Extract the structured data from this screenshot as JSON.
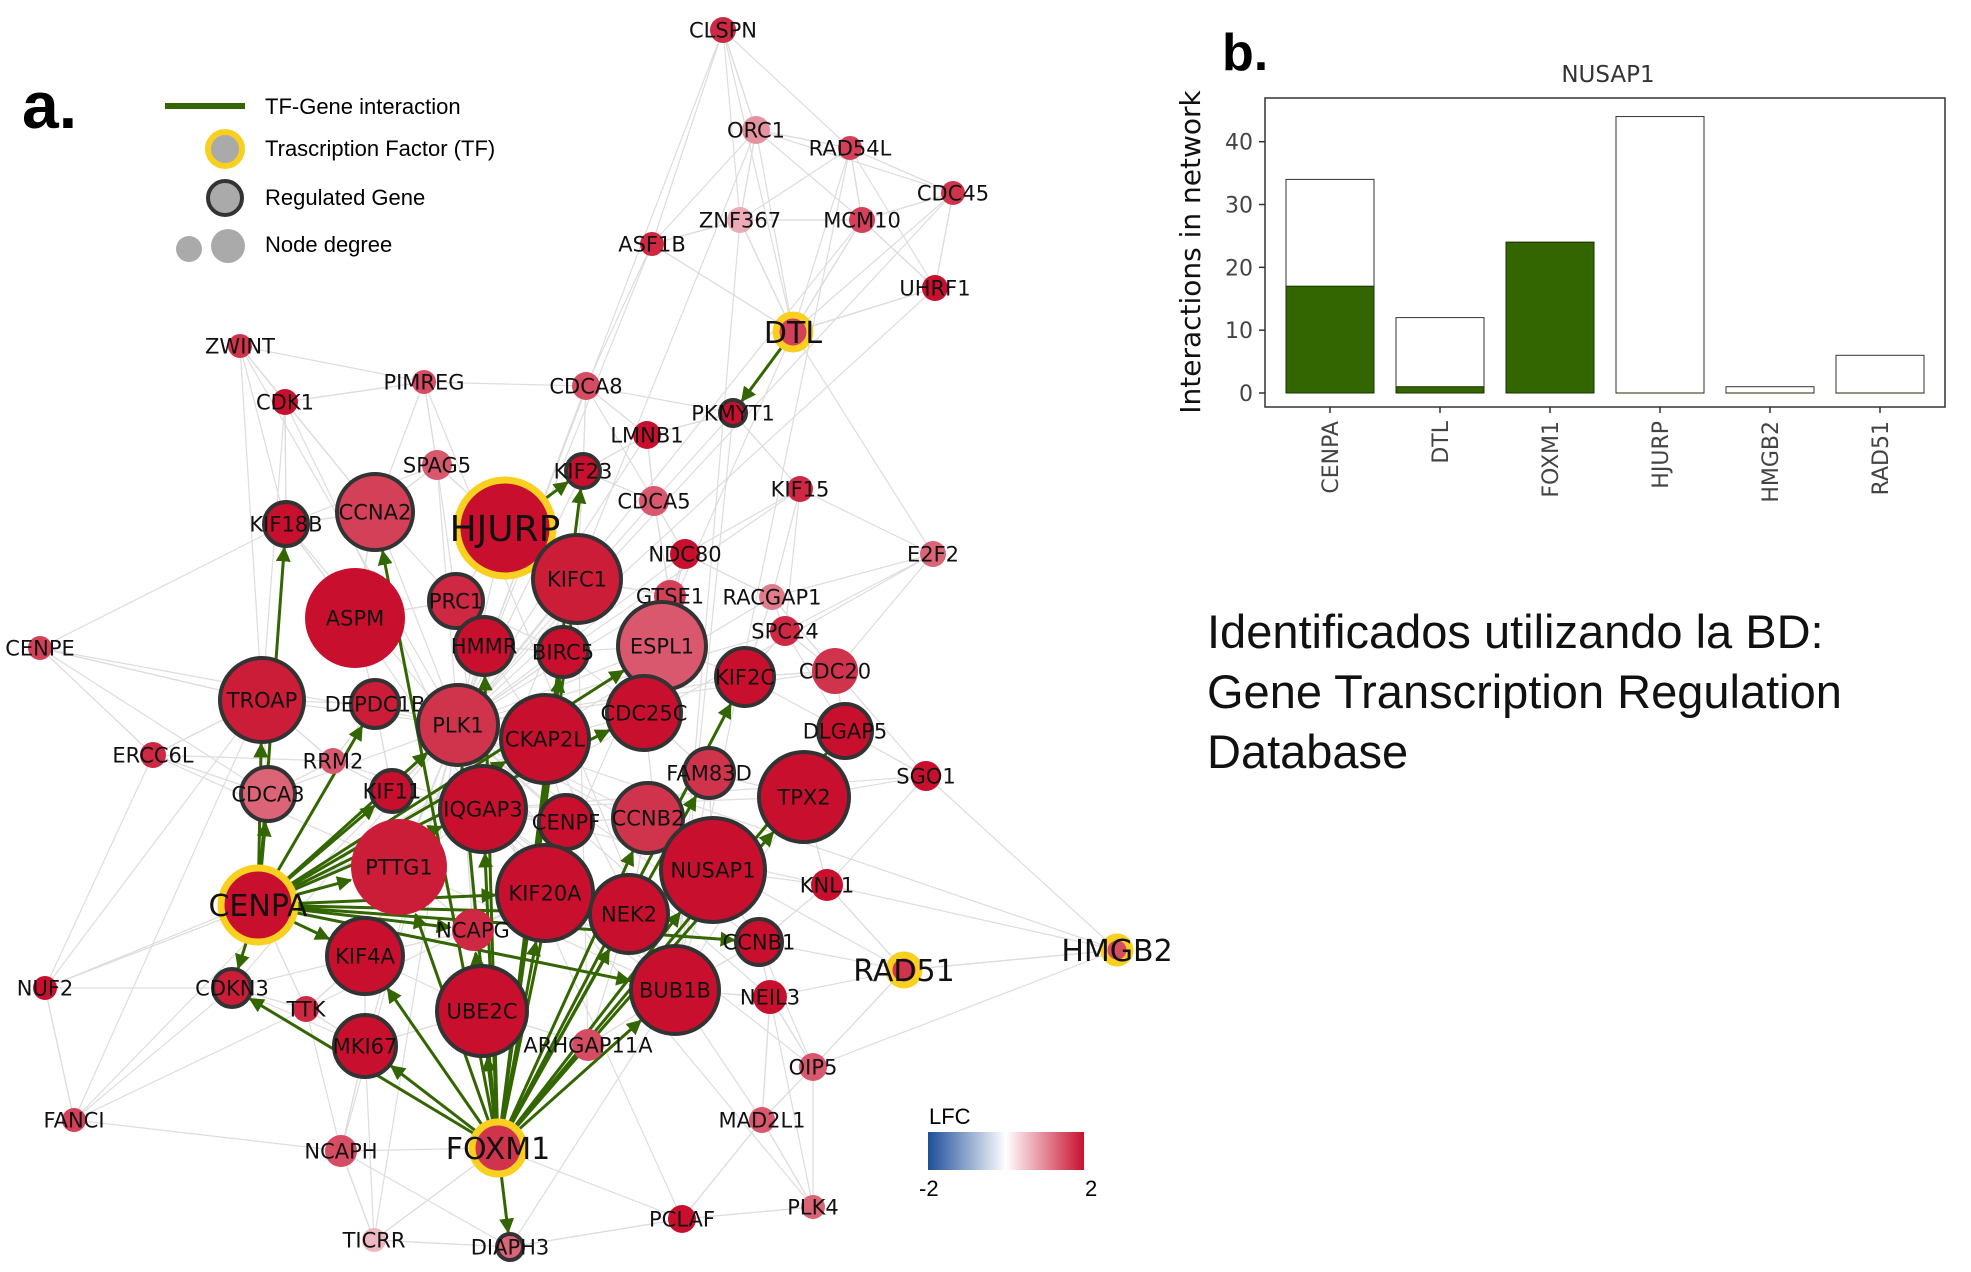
{
  "panel_a": {
    "letter": "a.",
    "legend": {
      "tf_gene_interaction": "TF-Gene interaction",
      "transcription_factor": "Trascription Factor (TF)",
      "regulated_gene": "Regulated Gene",
      "node_degree": "Node degree"
    },
    "colorbar": {
      "title": "LFC",
      "min_label": "-2",
      "max_label": "2",
      "low_color": "#1e4e9a",
      "mid_color": "#ffffff",
      "high_color": "#c8102e"
    },
    "colors": {
      "tf_ring": "#f9d020",
      "gene_ring": "#333333",
      "edge": "#dddddd",
      "regulation_edge": "#336600"
    },
    "nodes": [
      {
        "label": "CLSPN",
        "lfc": 1.8,
        "kind": "plain"
      },
      {
        "label": "ORC1",
        "lfc": 0.9,
        "kind": "plain"
      },
      {
        "label": "RAD54L",
        "lfc": 1.6,
        "kind": "plain"
      },
      {
        "label": "CDC45",
        "lfc": 1.7,
        "kind": "plain"
      },
      {
        "label": "ZNF367",
        "lfc": 0.7,
        "kind": "plain"
      },
      {
        "label": "MCM10",
        "lfc": 1.6,
        "kind": "plain"
      },
      {
        "label": "ASF1B",
        "lfc": 1.8,
        "kind": "plain"
      },
      {
        "label": "UHRF1",
        "lfc": 2,
        "kind": "plain"
      },
      {
        "label": "DTL",
        "lfc": 1.6,
        "kind": "tf"
      },
      {
        "label": "ZWINT",
        "lfc": 1.7,
        "kind": "plain"
      },
      {
        "label": "PIMREG",
        "lfc": 1.5,
        "kind": "plain"
      },
      {
        "label": "CDCA8",
        "lfc": 1.5,
        "kind": "plain"
      },
      {
        "label": "PKMYT1",
        "lfc": 2,
        "kind": "gene"
      },
      {
        "label": "CDK1",
        "lfc": 2,
        "kind": "plain"
      },
      {
        "label": "LMNB1",
        "lfc": 2,
        "kind": "plain"
      },
      {
        "label": "SPAG5",
        "lfc": 1.4,
        "kind": "plain"
      },
      {
        "label": "KIF23",
        "lfc": 2,
        "kind": "gene"
      },
      {
        "label": "KIF15",
        "lfc": 1.8,
        "kind": "plain"
      },
      {
        "label": "CCNA2",
        "lfc": 1.6,
        "kind": "gene"
      },
      {
        "label": "HJURP",
        "lfc": 2,
        "kind": "tf"
      },
      {
        "label": "CDCA5",
        "lfc": 1.4,
        "kind": "plain"
      },
      {
        "label": "KIF18B",
        "lfc": 2,
        "kind": "gene"
      },
      {
        "label": "NDC80",
        "lfc": 2,
        "kind": "plain"
      },
      {
        "label": "E2F2",
        "lfc": 1.3,
        "kind": "plain"
      },
      {
        "label": "KIFC1",
        "lfc": 1.9,
        "kind": "gene"
      },
      {
        "label": "PRC1",
        "lfc": 1.8,
        "kind": "gene"
      },
      {
        "label": "GTSE1",
        "lfc": 1.6,
        "kind": "plain"
      },
      {
        "label": "RACGAP1",
        "lfc": 1.1,
        "kind": "plain"
      },
      {
        "label": "ASPM",
        "lfc": 2,
        "kind": "plain"
      },
      {
        "label": "HMMR",
        "lfc": 2,
        "kind": "gene"
      },
      {
        "label": "BIRC5",
        "lfc": 2,
        "kind": "gene"
      },
      {
        "label": "ESPL1",
        "lfc": 1.4,
        "kind": "gene"
      },
      {
        "label": "SPC24",
        "lfc": 1.8,
        "kind": "plain"
      },
      {
        "label": "CENPE",
        "lfc": 1.6,
        "kind": "plain"
      },
      {
        "label": "CDC20",
        "lfc": 1.7,
        "kind": "plain"
      },
      {
        "label": "TROAP",
        "lfc": 1.9,
        "kind": "gene"
      },
      {
        "label": "DEPDC1B",
        "lfc": 1.9,
        "kind": "gene"
      },
      {
        "label": "KIF2C",
        "lfc": 2,
        "kind": "gene"
      },
      {
        "label": "PLK1",
        "lfc": 1.7,
        "kind": "gene"
      },
      {
        "label": "CKAP2L",
        "lfc": 2,
        "kind": "gene"
      },
      {
        "label": "CDC25C",
        "lfc": 2,
        "kind": "gene"
      },
      {
        "label": "DLGAP5",
        "lfc": 2,
        "kind": "gene"
      },
      {
        "label": "ERCC6L",
        "lfc": 1.8,
        "kind": "plain"
      },
      {
        "label": "RRM2",
        "lfc": 1.4,
        "kind": "plain"
      },
      {
        "label": "FAM83D",
        "lfc": 1.7,
        "kind": "gene"
      },
      {
        "label": "SGO1",
        "lfc": 2,
        "kind": "plain"
      },
      {
        "label": "CDCA3",
        "lfc": 1.3,
        "kind": "gene"
      },
      {
        "label": "KIF11",
        "lfc": 2,
        "kind": "gene"
      },
      {
        "label": "IQGAP3",
        "lfc": 2,
        "kind": "gene"
      },
      {
        "label": "CENPF",
        "lfc": 2,
        "kind": "gene"
      },
      {
        "label": "CCNB2",
        "lfc": 1.7,
        "kind": "gene"
      },
      {
        "label": "TPX2",
        "lfc": 2,
        "kind": "gene"
      },
      {
        "label": "PTTG1",
        "lfc": 1.9,
        "kind": "plain"
      },
      {
        "label": "NUSAP1",
        "lfc": 2,
        "kind": "gene"
      },
      {
        "label": "KNL1",
        "lfc": 2,
        "kind": "plain"
      },
      {
        "label": "CENPA",
        "lfc": 2,
        "kind": "tf"
      },
      {
        "label": "KIF20A",
        "lfc": 2,
        "kind": "gene"
      },
      {
        "label": "NEK2",
        "lfc": 2,
        "kind": "gene"
      },
      {
        "label": "NCAPG",
        "lfc": 1.8,
        "kind": "plain"
      },
      {
        "label": "CCNB1",
        "lfc": 2,
        "kind": "gene"
      },
      {
        "label": "HMGB2",
        "lfc": 1.5,
        "kind": "tf"
      },
      {
        "label": "KIF4A",
        "lfc": 2,
        "kind": "gene"
      },
      {
        "label": "RAD51",
        "lfc": 1.7,
        "kind": "tf"
      },
      {
        "label": "NUF2",
        "lfc": 2,
        "kind": "plain"
      },
      {
        "label": "CDKN3",
        "lfc": 1.9,
        "kind": "gene"
      },
      {
        "label": "TTK",
        "lfc": 1.8,
        "kind": "plain"
      },
      {
        "label": "BUB1B",
        "lfc": 2,
        "kind": "gene"
      },
      {
        "label": "NEIL3",
        "lfc": 2,
        "kind": "plain"
      },
      {
        "label": "UBE2C",
        "lfc": 2,
        "kind": "gene"
      },
      {
        "label": "MKI67",
        "lfc": 2,
        "kind": "gene"
      },
      {
        "label": "ARHGAP11A",
        "lfc": 1.5,
        "kind": "plain"
      },
      {
        "label": "OIP5",
        "lfc": 1.4,
        "kind": "plain"
      },
      {
        "label": "FANCI",
        "lfc": 1.6,
        "kind": "plain"
      },
      {
        "label": "MAD2L1",
        "lfc": 1.4,
        "kind": "plain"
      },
      {
        "label": "NCAPH",
        "lfc": 1.5,
        "kind": "plain"
      },
      {
        "label": "FOXM1",
        "lfc": 1.7,
        "kind": "tf"
      },
      {
        "label": "TICRR",
        "lfc": 0.6,
        "kind": "plain"
      },
      {
        "label": "DIAPH3",
        "lfc": 1.3,
        "kind": "gene"
      },
      {
        "label": "PCLAF",
        "lfc": 2,
        "kind": "plain"
      },
      {
        "label": "PLK4",
        "lfc": 1.3,
        "kind": "plain"
      }
    ]
  },
  "panel_b": {
    "letter": "b.",
    "caption_lines": [
      "Identificados utilizando la BD:",
      "Gene Transcription Regulation",
      "Database"
    ]
  },
  "chart_data": {
    "type": "bar",
    "title": "NUSAP1",
    "xlabel": "",
    "ylabel": "Interactions in network",
    "categories": [
      "CENPA",
      "DTL",
      "FOXM1",
      "HJURP",
      "HMGB2",
      "RAD51"
    ],
    "series": [
      {
        "values": [
          34,
          12,
          24,
          44,
          1,
          6
        ],
        "color": "#ffffff"
      },
      {
        "values": [
          17,
          1,
          24,
          0,
          0,
          0
        ],
        "color": "#336600"
      }
    ],
    "ylim": [
      0,
      46
    ],
    "yticks": [
      0,
      10,
      20,
      30,
      40
    ],
    "grid": false
  }
}
